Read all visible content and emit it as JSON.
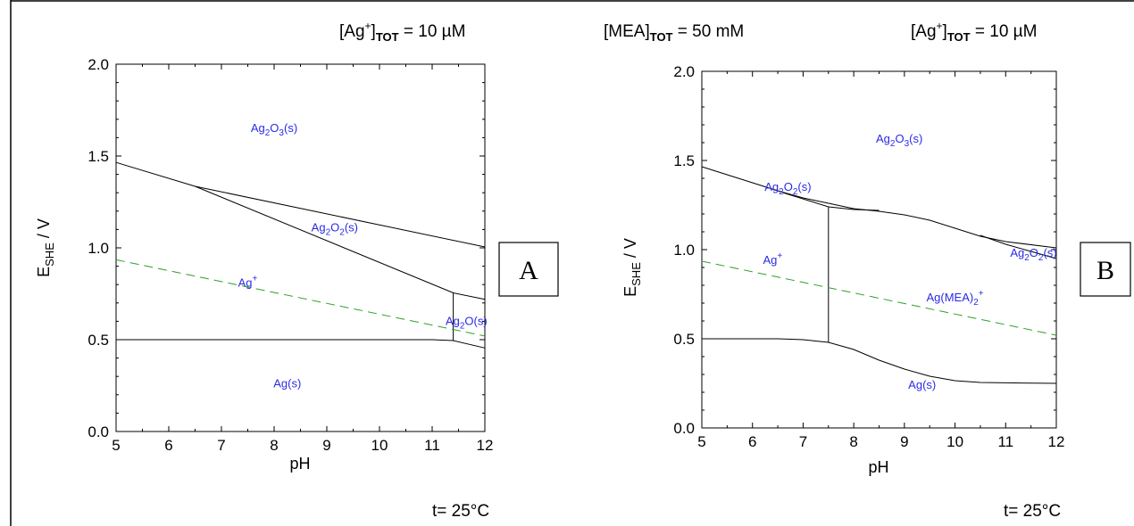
{
  "header": {
    "left_conc": "[Ag",
    "left_conc_sup": "+",
    "left_conc_close": "]",
    "left_conc_sub": "TOT",
    "left_conc_value": " = 10 µM",
    "mid_conc": "[MEA]",
    "mid_conc_sub": "TOT",
    "mid_conc_value": " = 50 mM",
    "right_conc": "[Ag",
    "right_conc_sup": "+",
    "right_conc_close": "]",
    "right_conc_sub": "TOT",
    "right_conc_value": " = 10 µM"
  },
  "footer": {
    "temp_left": "t= 25°C",
    "temp_right": "t= 25°C"
  },
  "colors": {
    "boundary": "#000000",
    "water_line": "#2ca02c",
    "species_label": "#2a2ae6"
  },
  "chart_data": [
    {
      "type": "line",
      "panel_label": "A",
      "xlabel": "pH",
      "ylabel_main": "E",
      "ylabel_sub": "SHE",
      "ylabel_unit": " / V",
      "xlim": [
        5,
        12
      ],
      "ylim": [
        0,
        2
      ],
      "xticks": [
        "5",
        "6",
        "7",
        "8",
        "9",
        "10",
        "11",
        "12"
      ],
      "yticks": [
        "0.0",
        "0.5",
        "1.0",
        "1.5",
        "2.0"
      ],
      "series": [
        {
          "style": "solid",
          "points": [
            [
              5,
              1.465
            ],
            [
              6.5,
              1.335
            ],
            [
              12,
              1.005
            ]
          ]
        },
        {
          "style": "solid",
          "points": [
            [
              6.5,
              1.335
            ],
            [
              11.4,
              0.755
            ],
            [
              12,
              0.72
            ]
          ]
        },
        {
          "style": "solid",
          "points": [
            [
              5,
              0.5
            ],
            [
              11.0,
              0.5
            ],
            [
              11.4,
              0.495
            ],
            [
              12,
              0.455
            ]
          ]
        },
        {
          "style": "solid",
          "points": [
            [
              11.4,
              0.495
            ],
            [
              11.4,
              0.755
            ]
          ]
        },
        {
          "style": "dashed",
          "points": [
            [
              5,
              0.935
            ],
            [
              12,
              0.52
            ]
          ]
        }
      ],
      "regions": [
        {
          "base": "Ag",
          "sub1": "2",
          "mid": "O",
          "sub2": "3",
          "tail": "(s)",
          "x": 8.0,
          "y": 1.63
        },
        {
          "base": "Ag",
          "sub1": "2",
          "mid": "O",
          "sub2": "2",
          "tail": "(s)",
          "x": 9.15,
          "y": 1.09
        },
        {
          "base": "Ag",
          "sup": "+",
          "x": 7.5,
          "y": 0.79
        },
        {
          "base": "Ag",
          "sub1": "2",
          "mid": "O",
          "tail": "(s)",
          "x": 11.65,
          "y": 0.58
        },
        {
          "base": "Ag",
          "tail": "(s)",
          "x": 8.25,
          "y": 0.24
        }
      ]
    },
    {
      "type": "line",
      "panel_label": "B",
      "xlabel": "pH",
      "ylabel_main": "E",
      "ylabel_sub": "SHE",
      "ylabel_unit": " / V",
      "xlim": [
        5,
        12
      ],
      "ylim": [
        0,
        2
      ],
      "xticks": [
        "5",
        "6",
        "7",
        "8",
        "9",
        "10",
        "11",
        "12"
      ],
      "yticks": [
        "0.0",
        "0.5",
        "1.0",
        "1.5",
        "2.0"
      ],
      "series": [
        {
          "style": "solid",
          "points": [
            [
              5,
              1.465
            ],
            [
              6.5,
              1.33
            ],
            [
              7.0,
              1.29
            ],
            [
              7.5,
              1.26
            ],
            [
              8.0,
              1.23
            ],
            [
              8.5,
              1.215
            ],
            [
              9.0,
              1.195
            ],
            [
              9.5,
              1.165
            ],
            [
              10.0,
              1.12
            ],
            [
              10.5,
              1.075
            ],
            [
              11.0,
              1.045
            ],
            [
              12,
              1.01
            ]
          ]
        },
        {
          "style": "solid",
          "points": [
            [
              6.6,
              1.32
            ],
            [
              7.5,
              1.24
            ],
            [
              8.0,
              1.225
            ],
            [
              8.5,
              1.22
            ]
          ]
        },
        {
          "style": "solid",
          "points": [
            [
              10.5,
              1.08
            ],
            [
              11.0,
              1.03
            ],
            [
              11.5,
              0.99
            ],
            [
              12,
              0.95
            ]
          ]
        },
        {
          "style": "solid",
          "points": [
            [
              7.5,
              1.24
            ],
            [
              7.5,
              0.48
            ]
          ]
        },
        {
          "style": "solid",
          "points": [
            [
              5,
              0.5
            ],
            [
              6.5,
              0.5
            ],
            [
              7.0,
              0.495
            ],
            [
              7.5,
              0.48
            ],
            [
              8.0,
              0.44
            ],
            [
              8.5,
              0.38
            ],
            [
              9.0,
              0.33
            ],
            [
              9.5,
              0.29
            ],
            [
              10.0,
              0.265
            ],
            [
              10.5,
              0.255
            ],
            [
              11.0,
              0.253
            ],
            [
              12,
              0.25
            ]
          ]
        },
        {
          "style": "dashed",
          "points": [
            [
              5,
              0.935
            ],
            [
              12,
              0.52
            ]
          ]
        }
      ],
      "regions": [
        {
          "base": "Ag",
          "sub1": "2",
          "mid": "O",
          "sub2": "3",
          "tail": "(s)",
          "x": 8.9,
          "y": 1.6
        },
        {
          "base": "Ag",
          "sub1": "2",
          "mid": "O",
          "sub2": "2",
          "tail": "(s)",
          "x": 6.7,
          "y": 1.33
        },
        {
          "base": "Ag",
          "sup": "+",
          "x": 6.4,
          "y": 0.92
        },
        {
          "base": "Ag(MEA)",
          "sub1": "2",
          "sup": "+",
          "x": 10.0,
          "y": 0.71
        },
        {
          "base": "Ag",
          "sub1": "2",
          "mid": "O",
          "sub2": "2",
          "tail": "(s)",
          "x": 11.55,
          "y": 0.96
        },
        {
          "base": "Ag",
          "tail": "(s)",
          "x": 9.35,
          "y": 0.22
        }
      ]
    }
  ]
}
